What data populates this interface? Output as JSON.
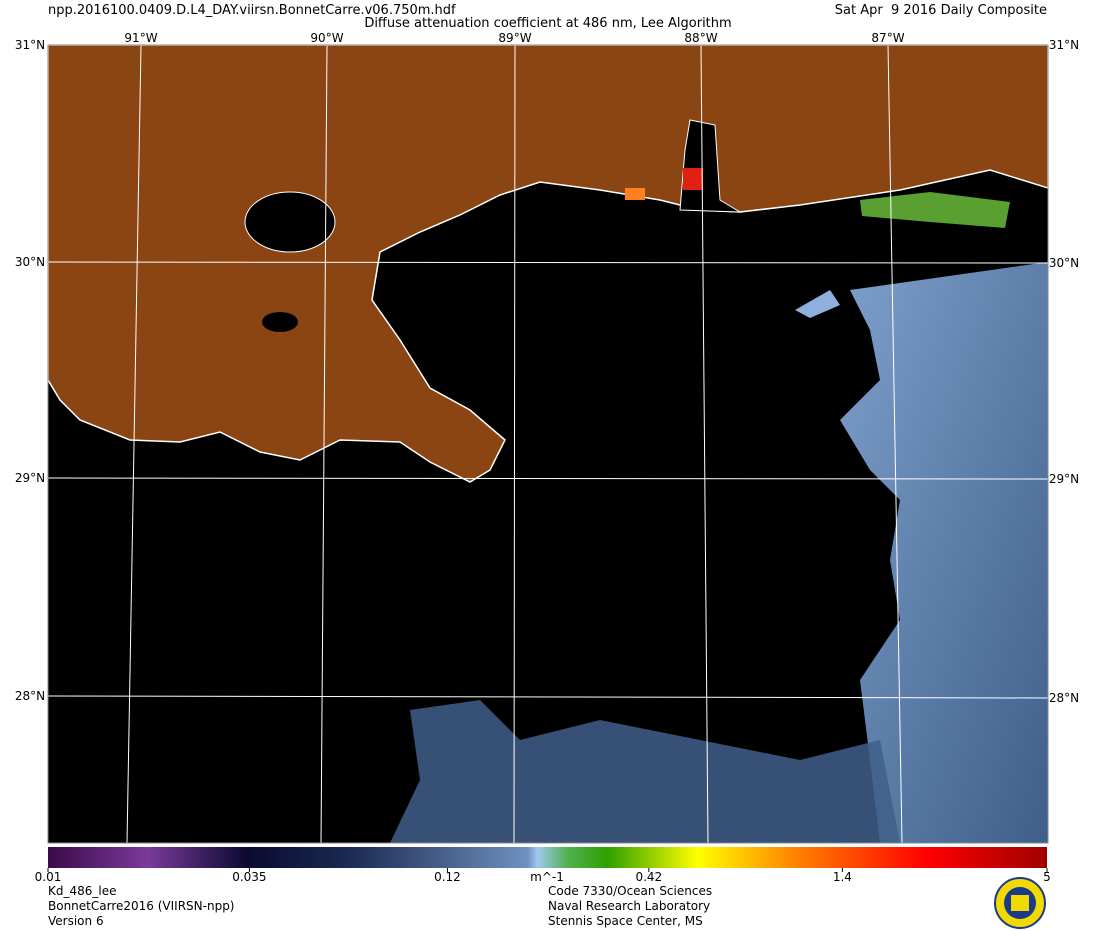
{
  "header": {
    "filename": "npp.2016100.0409.D.L4_DAY.viirsn.BonnetCarre.v06.750m.hdf",
    "title": "Diffuse attenuation coefficient at 486 nm, Lee Algorithm",
    "date": "Sat Apr  9 2016 Daily Composite"
  },
  "map": {
    "lat_labels": [
      "31°N",
      "30°N",
      "29°N",
      "28°N"
    ],
    "lon_labels": [
      "91°W",
      "90°W",
      "89°W",
      "88°W",
      "87°W"
    ]
  },
  "colorbar": {
    "type": "colorbar",
    "scale": "log",
    "lim": [
      0.01,
      5
    ],
    "ticks": [
      0.01,
      0.035,
      0.12,
      0.42,
      1.4,
      5
    ],
    "unit": "m^-1"
  },
  "footer": {
    "left": [
      "Kd_486_lee",
      "BonnetCarre2016 (VIIRSN-npp)",
      "Version 6"
    ],
    "center": [
      "Code 7330/Ocean Sciences",
      "Naval Research Laboratory",
      "Stennis Space Center, MS"
    ]
  }
}
